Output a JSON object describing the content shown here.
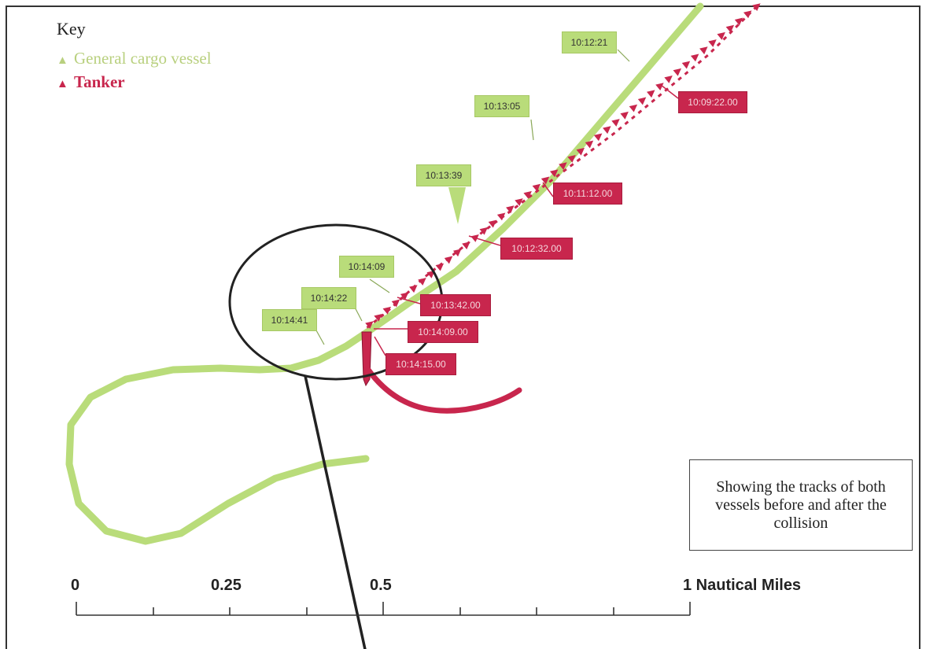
{
  "key": {
    "title": "Key",
    "items": [
      {
        "label": "General cargo vessel",
        "symbol": "▲",
        "color": "#b9d07f"
      },
      {
        "label": "Tanker",
        "symbol": "▲",
        "color": "#c8264d"
      }
    ]
  },
  "cargo_labels": [
    "10:12:21",
    "10:13:05",
    "10:13:39",
    "10:14:09",
    "10:14:22",
    "10:14:41"
  ],
  "tanker_labels": [
    "10:09:22.00",
    "10:11:12.00",
    "10:12:32.00",
    "10:13:42.00",
    "10:14:09.00",
    "10:14:15.00"
  ],
  "note": "Showing the tracks of both vessels before and after the collision",
  "scale": {
    "labels": [
      "0",
      "0.25",
      "0.5",
      "1 Nautical Miles"
    ]
  },
  "colors": {
    "cargo_track": "#b9dc7a",
    "tanker_track": "#c8264d",
    "border": "#333333"
  }
}
